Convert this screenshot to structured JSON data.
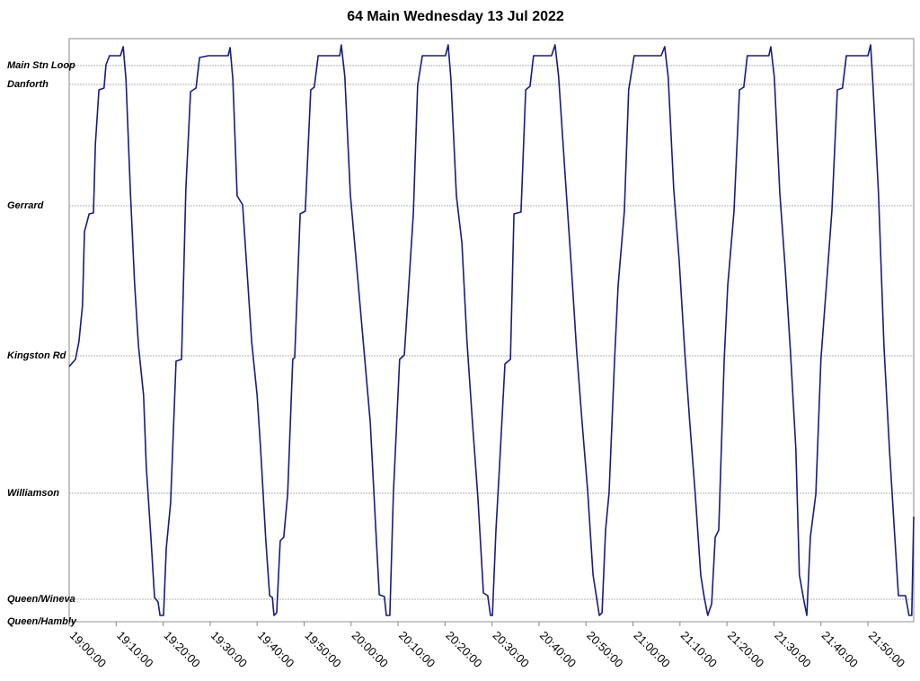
{
  "chart_data": {
    "type": "line",
    "title": "64 Main Wednesday 13 Jul 2022",
    "color": "#1a1a80",
    "grid": true,
    "x": [
      "19:00:00",
      "19:01:20",
      "19:02:05",
      "19:02:50",
      "19:03:15",
      "19:04:15",
      "19:05:10",
      "19:05:35",
      "19:06:20",
      "19:07:25",
      "19:07:50",
      "19:08:35",
      "19:10:55",
      "19:11:30",
      "19:12:05",
      "19:13:00",
      "19:13:55",
      "19:14:45",
      "19:15:50",
      "19:16:25",
      "19:17:25",
      "19:18:10",
      "19:18:55",
      "19:19:20",
      "19:20:05",
      "19:20:40",
      "19:21:35",
      "19:22:45",
      "19:23:55",
      "19:24:50",
      "19:25:50",
      "19:27:00",
      "19:27:45",
      "19:29:40",
      "19:33:50",
      "19:34:15",
      "19:34:50",
      "19:35:45",
      "19:36:55",
      "19:38:05",
      "19:38:50",
      "19:40:00",
      "19:40:45",
      "19:41:50",
      "19:42:40",
      "19:43:15",
      "19:43:35",
      "19:44:10",
      "19:44:55",
      "19:45:40",
      "19:46:30",
      "19:47:35",
      "19:48:00",
      "19:49:10",
      "19:50:15",
      "19:51:25",
      "19:52:10",
      "19:53:00",
      "19:57:35",
      "19:57:55",
      "19:58:40",
      "19:59:50",
      "20:01:25",
      "20:02:45",
      "20:04:05",
      "20:05:10",
      "20:06:00",
      "20:07:05",
      "20:07:30",
      "20:08:15",
      "20:09:00",
      "20:10:20",
      "20:11:20",
      "20:13:15",
      "20:14:10",
      "20:15:10",
      "20:20:05",
      "20:20:40",
      "20:21:15",
      "20:22:25",
      "20:23:35",
      "20:24:40",
      "20:25:50",
      "20:27:00",
      "20:28:10",
      "20:29:05",
      "20:29:40",
      "20:30:05",
      "20:30:50",
      "20:31:35",
      "20:32:45",
      "20:33:55",
      "20:34:40",
      "20:36:10",
      "20:37:10",
      "20:38:05",
      "20:38:50",
      "20:42:40",
      "20:43:25",
      "20:44:10",
      "20:45:45",
      "20:46:55",
      "20:48:00",
      "20:49:10",
      "20:50:20",
      "20:51:30",
      "20:52:15",
      "20:52:50",
      "20:53:25",
      "20:54:10",
      "20:54:55",
      "20:56:05",
      "20:56:50",
      "20:58:10",
      "20:59:05",
      "21:00:15",
      "21:06:00",
      "21:06:45",
      "21:07:30",
      "21:08:40",
      "21:09:50",
      "21:11:00",
      "21:12:05",
      "21:13:15",
      "21:14:25",
      "21:15:10",
      "21:15:55",
      "21:16:45",
      "21:17:30",
      "21:18:15",
      "21:19:25",
      "21:20:10",
      "21:21:30",
      "21:22:40",
      "21:23:35",
      "21:24:20",
      "21:28:55",
      "21:29:20",
      "21:30:05",
      "21:31:15",
      "21:32:25",
      "21:33:30",
      "21:34:40",
      "21:35:25",
      "21:36:15",
      "21:37:00",
      "21:37:45",
      "21:38:55",
      "21:40:00",
      "21:41:10",
      "21:42:20",
      "21:43:30",
      "21:44:35",
      "21:45:25",
      "21:50:00",
      "21:50:35",
      "21:51:05",
      "21:52:15",
      "21:53:25",
      "21:54:35",
      "21:55:45",
      "21:56:30",
      "21:58:00",
      "21:58:45",
      "21:59:20",
      "21:59:45"
    ],
    "values": [
      2.84,
      2.92,
      3.12,
      3.52,
      4.34,
      4.54,
      4.55,
      5.32,
      5.92,
      5.94,
      6.2,
      6.3,
      6.3,
      6.4,
      6.04,
      4.82,
      3.77,
      3.07,
      2.52,
      1.72,
      0.92,
      0.27,
      0.22,
      0.07,
      0.07,
      0.82,
      1.32,
      2.9,
      2.92,
      4.82,
      5.9,
      5.94,
      6.28,
      6.3,
      6.3,
      6.39,
      6.04,
      4.74,
      4.64,
      3.72,
      3.12,
      2.52,
      1.92,
      0.92,
      0.29,
      0.27,
      0.07,
      0.1,
      0.9,
      0.94,
      1.42,
      2.92,
      2.94,
      4.54,
      4.57,
      5.92,
      5.95,
      6.3,
      6.3,
      6.42,
      6.07,
      4.76,
      3.82,
      3.02,
      2.22,
      1.12,
      0.3,
      0.28,
      0.07,
      0.07,
      1.42,
      2.92,
      2.97,
      4.54,
      5.97,
      6.3,
      6.3,
      6.42,
      6.04,
      4.74,
      4.22,
      3.12,
      2.22,
      1.37,
      0.32,
      0.29,
      0.07,
      0.07,
      1.02,
      1.72,
      2.87,
      2.92,
      4.54,
      4.56,
      5.92,
      5.96,
      6.3,
      6.3,
      6.42,
      6.07,
      4.82,
      3.92,
      3.02,
      2.22,
      1.47,
      0.52,
      0.27,
      0.07,
      0.1,
      1.02,
      1.44,
      2.92,
      3.74,
      4.57,
      5.92,
      6.3,
      6.3,
      6.4,
      6.06,
      4.82,
      4.02,
      3.02,
      2.22,
      1.42,
      0.52,
      0.27,
      0.07,
      0.2,
      0.94,
      1.02,
      2.92,
      3.74,
      4.57,
      5.92,
      5.95,
      6.3,
      6.3,
      6.4,
      6.06,
      4.77,
      3.92,
      3.02,
      1.92,
      0.52,
      0.27,
      0.07,
      0.94,
      1.42,
      2.92,
      3.74,
      4.57,
      5.92,
      5.94,
      6.3,
      6.3,
      6.42,
      5.97,
      4.77,
      3.07,
      1.92,
      0.92,
      0.29,
      0.29,
      0.07,
      0.07,
      1.17
    ],
    "xlim": [
      "19:00:00",
      "21:59:45"
    ],
    "xticks": [
      "19:00:00",
      "19:10:00",
      "19:20:00",
      "19:30:00",
      "19:40:00",
      "19:50:00",
      "20:00:00",
      "20:10:00",
      "20:20:00",
      "20:30:00",
      "20:40:00",
      "20:50:00",
      "21:00:00",
      "21:10:00",
      "21:20:00",
      "21:30:00",
      "21:40:00",
      "21:50:00"
    ],
    "ylim": [
      0,
      6.49
    ],
    "yticks": [
      {
        "value": 0,
        "label": "Queen/Hambly"
      },
      {
        "value": 0.25,
        "label": "Queen/Wineva"
      },
      {
        "value": 1.43,
        "label": "Williamson"
      },
      {
        "value": 2.96,
        "label": "Kingston Rd"
      },
      {
        "value": 4.63,
        "label": "Gerrard"
      },
      {
        "value": 5.98,
        "label": "Danforth"
      },
      {
        "value": 6.19,
        "label": "Main Stn Loop"
      }
    ]
  }
}
